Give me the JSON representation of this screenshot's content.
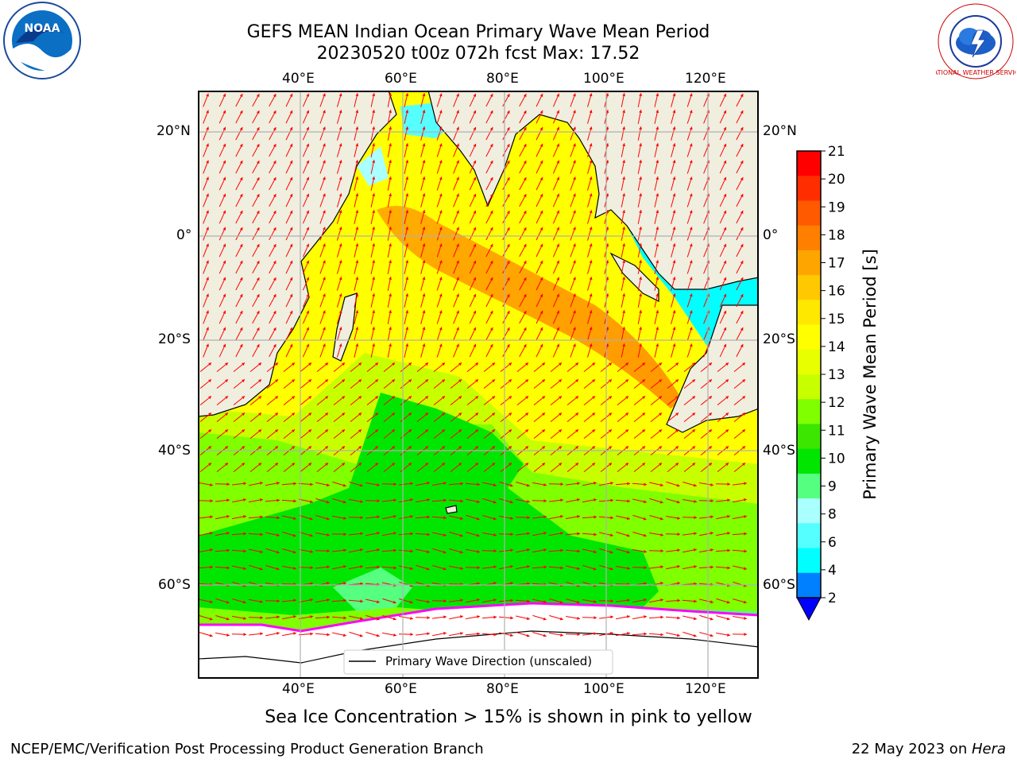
{
  "title_line1": "GEFS MEAN Indian Ocean Primary Wave Mean Period",
  "title_line2": "20230520 t00z 072h fcst   Max: 17.52",
  "lon_labels": [
    "40°E",
    "60°E",
    "80°E",
    "100°E",
    "120°E"
  ],
  "lat_labels": [
    "20°N",
    "0°",
    "20°S",
    "40°S",
    "60°S"
  ],
  "legend_label": "Primary Wave Direction (unscaled)",
  "colorbar": {
    "label": "Primary Wave Mean Period [s]",
    "ticks": [
      "21",
      "20",
      "19",
      "18",
      "17",
      "16",
      "15",
      "14",
      "13",
      "12",
      "11",
      "10",
      "9",
      "8",
      "6",
      "4",
      "2"
    ],
    "colors": [
      "#ff0000",
      "#ff2d00",
      "#ff5a00",
      "#ff7f00",
      "#ffa500",
      "#ffc800",
      "#ffe800",
      "#ffff00",
      "#e8ff00",
      "#c8ff00",
      "#7fff00",
      "#3ce600",
      "#00e600",
      "#55ff7f",
      "#aaffff",
      "#55ffff",
      "#00ffff",
      "#007fff"
    ],
    "extend_color": "#0000ff"
  },
  "note": "Sea Ice Concentration > 15% is shown in pink to yellow",
  "footer_left": "NCEP/EMC/Verification Post Processing Product Generation Branch",
  "footer_right_prefix": "22 May 2023 on ",
  "footer_right_host": "Hera",
  "logos": {
    "noaa_text": "NOAA",
    "nws_text": "NATIONAL WEATHER SERVICE"
  },
  "colors": {
    "land": "#f0eedf",
    "sea_ice": "#ffffff",
    "arrow": "#ff0000",
    "grid": "#b0b0b0"
  }
}
